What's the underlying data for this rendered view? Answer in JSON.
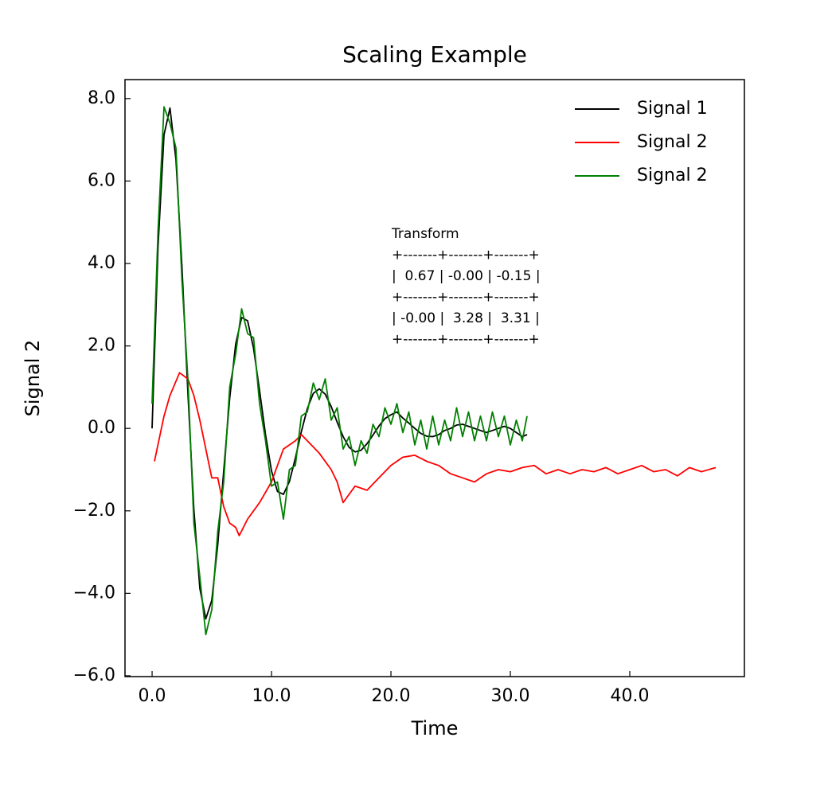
{
  "chart_data": {
    "type": "line",
    "title": "Scaling Example",
    "xlabel": "Time",
    "ylabel": "Signal 2",
    "xlim": [
      -2.27,
      49.6
    ],
    "ylim": [
      -6.02,
      8.46
    ],
    "xticks": [
      {
        "value": 0,
        "label": "0.0"
      },
      {
        "value": 10,
        "label": "10.0"
      },
      {
        "value": 20,
        "label": "20.0"
      },
      {
        "value": 30,
        "label": "30.0"
      },
      {
        "value": 40,
        "label": "40.0"
      }
    ],
    "yticks": [
      {
        "value": -6,
        "label": "−6.0"
      },
      {
        "value": -4,
        "label": "−4.0"
      },
      {
        "value": -2,
        "label": "−2.0"
      },
      {
        "value": 0,
        "label": "0.0"
      },
      {
        "value": 2,
        "label": "2.0"
      },
      {
        "value": 4,
        "label": "4.0"
      },
      {
        "value": 6,
        "label": "6.0"
      },
      {
        "value": 8,
        "label": "8.0"
      }
    ],
    "legend": "upper right",
    "annotation": [
      "Transform",
      "+-------+-------+-------+",
      "|  0.67 | -0.00 | -0.15 |",
      "+-------+-------+-------+",
      "| -0.00 |  3.28 |  3.31 |",
      "+-------+-------+-------+"
    ],
    "series": [
      {
        "name": "Signal 1",
        "color": "#000000",
        "x": [
          0,
          0.5,
          1,
          1.5,
          2,
          2.5,
          3,
          3.5,
          4,
          4.5,
          5,
          5.5,
          6,
          6.5,
          7,
          7.5,
          8,
          8.5,
          9,
          9.5,
          10,
          10.5,
          11,
          11.5,
          12,
          12.5,
          13,
          13.5,
          14,
          14.5,
          15,
          15.5,
          16,
          16.5,
          17,
          17.5,
          18,
          18.5,
          19,
          19.5,
          20,
          20.5,
          21,
          21.5,
          22,
          22.5,
          23,
          23.5,
          24,
          24.5,
          25,
          25.5,
          26,
          26.5,
          27,
          27.5,
          28,
          28.5,
          29,
          29.5,
          30,
          30.5,
          31,
          31.4
        ],
        "values": [
          0,
          4.41,
          7.12,
          7.77,
          6.52,
          3.94,
          0.86,
          -1.96,
          -3.88,
          -4.62,
          -4.17,
          -2.82,
          -1.03,
          0.73,
          2.04,
          2.69,
          2.61,
          1.94,
          0.92,
          -0.15,
          -1.03,
          -1.53,
          -1.6,
          -1.29,
          -0.72,
          -0.08,
          0.48,
          0.85,
          0.96,
          0.83,
          0.53,
          0.15,
          -0.2,
          -0.46,
          -0.57,
          -0.53,
          -0.37,
          -0.16,
          0.06,
          0.24,
          0.33,
          0.4,
          0.25,
          0.13,
          0,
          -0.12,
          -0.19,
          -0.2,
          -0.15,
          -0.05,
          0,
          0.08,
          0.1,
          0.05,
          0,
          -0.05,
          -0.1,
          -0.05,
          0,
          0.05,
          0,
          -0.1,
          -0.2,
          -0.15
        ]
      },
      {
        "name": "Signal 2",
        "color": "#ff0000",
        "x": [
          0.2,
          1,
          1.5,
          2.3,
          3,
          3.5,
          4,
          4.5,
          5,
          5.5,
          6,
          6.5,
          7,
          7.3,
          8,
          9,
          10,
          11,
          12,
          12.5,
          13,
          14,
          15,
          15.5,
          16,
          17,
          18,
          19,
          20,
          21,
          22,
          23,
          24,
          25,
          26,
          27,
          28,
          29,
          30,
          31,
          32,
          33,
          34,
          35,
          36,
          37,
          38,
          39,
          40,
          41,
          42,
          43,
          44,
          45,
          46,
          47.2
        ],
        "values": [
          -0.8,
          0.3,
          0.8,
          1.35,
          1.2,
          0.8,
          0.2,
          -0.5,
          -1.2,
          -1.2,
          -1.9,
          -2.3,
          -2.4,
          -2.6,
          -2.2,
          -1.8,
          -1.3,
          -0.5,
          -0.3,
          -0.15,
          -0.3,
          -0.6,
          -1.0,
          -1.3,
          -1.8,
          -1.4,
          -1.5,
          -1.2,
          -0.9,
          -0.7,
          -0.65,
          -0.8,
          -0.9,
          -1.1,
          -1.2,
          -1.3,
          -1.1,
          -1.0,
          -1.05,
          -0.95,
          -0.9,
          -1.1,
          -1.0,
          -1.1,
          -1.0,
          -1.05,
          -0.95,
          -1.1,
          -1.0,
          -0.9,
          -1.05,
          -1.0,
          -1.15,
          -0.95,
          -1.05,
          -0.95
        ]
      },
      {
        "name": "Signal 2",
        "color": "#008000",
        "x": [
          0,
          0.5,
          1,
          1.5,
          2,
          2.5,
          3,
          3.5,
          4,
          4.5,
          5,
          5.5,
          6,
          6.5,
          7,
          7.5,
          8,
          8.5,
          9,
          9.5,
          10,
          10.5,
          11,
          11.5,
          12,
          12.5,
          13,
          13.5,
          14,
          14.5,
          15,
          15.5,
          16,
          16.5,
          17,
          17.5,
          18,
          18.5,
          19,
          19.5,
          20,
          20.5,
          21,
          21.5,
          22,
          22.5,
          23,
          23.5,
          24,
          24.5,
          25,
          25.5,
          26,
          26.5,
          27,
          27.5,
          28,
          28.5,
          29,
          29.5,
          30,
          30.5,
          31,
          31.4
        ],
        "values": [
          0.6,
          4.8,
          7.8,
          7.4,
          6.8,
          3.6,
          1.2,
          -2.3,
          -3.6,
          -5.0,
          -4.4,
          -2.5,
          -1.3,
          1.0,
          1.8,
          2.9,
          2.3,
          2.2,
          0.6,
          -0.3,
          -1.4,
          -1.3,
          -2.2,
          -1.0,
          -0.9,
          0.3,
          0.4,
          1.1,
          0.7,
          1.2,
          0.2,
          0.5,
          -0.5,
          -0.2,
          -0.9,
          -0.3,
          -0.6,
          0.1,
          -0.2,
          0.5,
          0.1,
          0.6,
          -0.1,
          0.4,
          -0.4,
          0.2,
          -0.5,
          0.3,
          -0.4,
          0.2,
          -0.3,
          0.5,
          -0.2,
          0.4,
          -0.3,
          0.3,
          -0.3,
          0.4,
          -0.2,
          0.3,
          -0.4,
          0.2,
          -0.3,
          0.3
        ]
      }
    ]
  }
}
